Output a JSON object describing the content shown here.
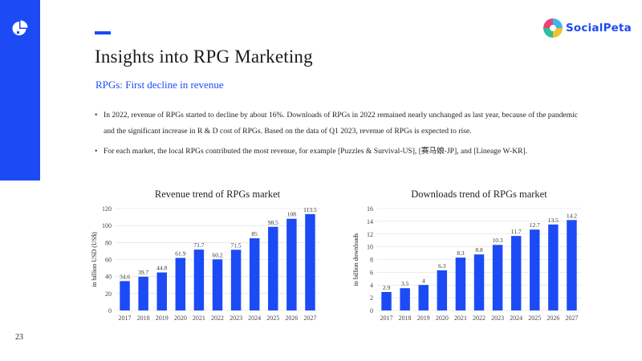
{
  "slide": {
    "title": "Insights into RPG Marketing",
    "subtitle": "RPGs: First decline in revenue",
    "bullets": [
      "In 2022, revenue of RPGs started to decline by about 16%. Downloads of RPGs in 2022 remained nearly unchanged as last year, because of the pandemic and the significant increase in R & D cost of RPGs. Based on the data of Q1 2023, revenue of RPGs is expected to rise.",
      "For each market, the local RPGs contributed the most revenue, for example [Puzzles & Survival-US], [赛马娘-JP], and [Lineage W-KR]."
    ],
    "page_number": "23",
    "brand_name": "SocialPeta",
    "brand_icon": "socialpeta-logo-icon",
    "corner_icon": "pie-segment-logo-icon"
  },
  "colors": {
    "accent": "#1c4bf5",
    "bar": "#1c4bf5",
    "grid": "#d9d9d9"
  },
  "chart_data": [
    {
      "type": "bar",
      "title": "Revenue trend of RPGs market",
      "xlabel": "",
      "ylabel": "in billion USD (US$)",
      "categories": [
        "2017",
        "2018",
        "2019",
        "2020",
        "2021",
        "2022",
        "2023",
        "2024",
        "2025",
        "2026",
        "2027"
      ],
      "values": [
        34.6,
        39.7,
        44.8,
        61.9,
        71.7,
        60.2,
        71.5,
        85,
        98.5,
        108,
        113.5
      ],
      "labels": [
        "34.6",
        "39.7",
        "44.8",
        "61.9",
        "71.7",
        "60.2",
        "71.5",
        "85",
        "98.5",
        "108",
        "113.5"
      ],
      "ylim": [
        0,
        120
      ],
      "yticks": [
        0,
        20,
        40,
        60,
        80,
        100,
        120
      ],
      "grid": true
    },
    {
      "type": "bar",
      "title": "Downloads trend of RPGs market",
      "xlabel": "",
      "ylabel": "in billion downloads",
      "categories": [
        "2017",
        "2018",
        "2019",
        "2020",
        "2021",
        "2022",
        "2023",
        "2024",
        "2025",
        "2026",
        "2027"
      ],
      "values": [
        2.9,
        3.5,
        4,
        6.3,
        8.3,
        8.8,
        10.3,
        11.7,
        12.7,
        13.5,
        14.2
      ],
      "labels": [
        "2.9",
        "3.5",
        "4",
        "6.3",
        "8.3",
        "8.8",
        "10.3",
        "11.7",
        "12.7",
        "13.5",
        "14.2"
      ],
      "ylim": [
        0,
        16
      ],
      "yticks": [
        0,
        2,
        4,
        6,
        8,
        10,
        12,
        14,
        16
      ],
      "grid": true
    }
  ]
}
